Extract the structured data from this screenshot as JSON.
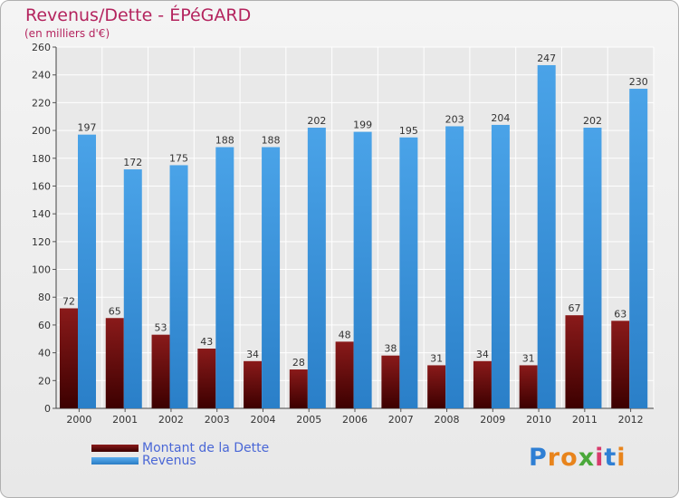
{
  "title": "Revenus/Dette - ÉPéGARD",
  "subtitle": "(en milliers d'€)",
  "colors": {
    "dette": "#6e0c0c",
    "revenus": "#3d95db",
    "title": "#b4245e",
    "legend_text": "#4a67d6"
  },
  "chart_data": {
    "type": "bar",
    "title": "Revenus/Dette - ÉPéGARD",
    "ylabel": "(en milliers d'€)",
    "xlabel": "",
    "ylim": [
      0,
      260
    ],
    "yticks": [
      0,
      20,
      40,
      60,
      80,
      100,
      120,
      140,
      160,
      180,
      200,
      220,
      240,
      260
    ],
    "grid": true,
    "legend_position": "bottom-left",
    "categories": [
      "2000",
      "2001",
      "2002",
      "2003",
      "2004",
      "2005",
      "2006",
      "2007",
      "2008",
      "2009",
      "2010",
      "2011",
      "2012"
    ],
    "series": [
      {
        "name": "Montant de la Dette",
        "values": [
          72,
          65,
          53,
          43,
          34,
          28,
          48,
          38,
          31,
          34,
          31,
          67,
          63
        ]
      },
      {
        "name": "Revenus",
        "values": [
          197,
          172,
          175,
          188,
          188,
          202,
          199,
          195,
          203,
          204,
          247,
          202,
          230
        ]
      }
    ]
  },
  "legend": {
    "dette_label": "Montant de la Dette",
    "revenus_label": "Revenus"
  },
  "logo": {
    "text": "Proxiti",
    "letters": [
      {
        "ch": "P",
        "color": "#2f7fd4"
      },
      {
        "ch": "r",
        "color": "#e8841c"
      },
      {
        "ch": "o",
        "color": "#e8841c"
      },
      {
        "ch": "x",
        "color": "#4aa83a"
      },
      {
        "ch": "i",
        "color": "#d83a6c"
      },
      {
        "ch": "t",
        "color": "#2f7fd4"
      },
      {
        "ch": "i",
        "color": "#e8841c"
      }
    ]
  }
}
